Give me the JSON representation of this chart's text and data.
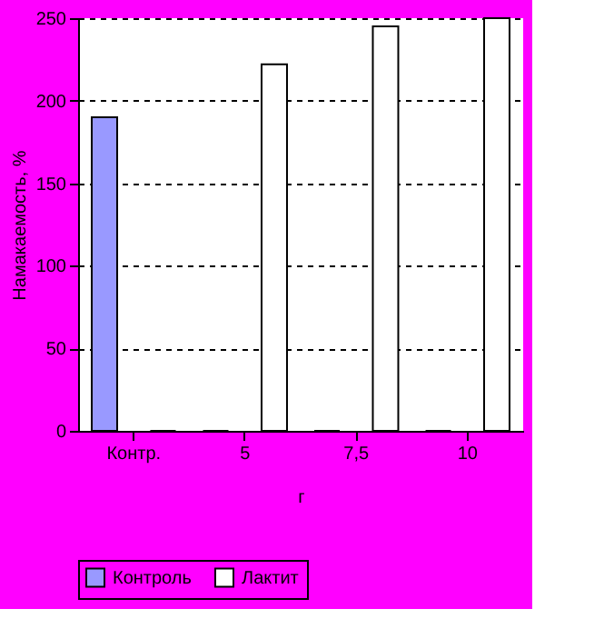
{
  "chart_data": {
    "type": "bar",
    "xlabel": "г",
    "ylabel": "Намакаемость, %",
    "categories": [
      "Контр.",
      "5",
      "7,5",
      "10"
    ],
    "series": [
      {
        "name": "Контроль",
        "color": "#9999ff",
        "values": [
          190,
          0,
          0,
          0
        ]
      },
      {
        "name": "Лактит",
        "color": "#ffffff",
        "values": [
          0,
          222,
          245,
          250
        ]
      }
    ],
    "ylim": [
      0,
      250
    ],
    "yticks": [
      0,
      50,
      100,
      150,
      200,
      250
    ],
    "grid": "y",
    "legend": "bottom"
  }
}
